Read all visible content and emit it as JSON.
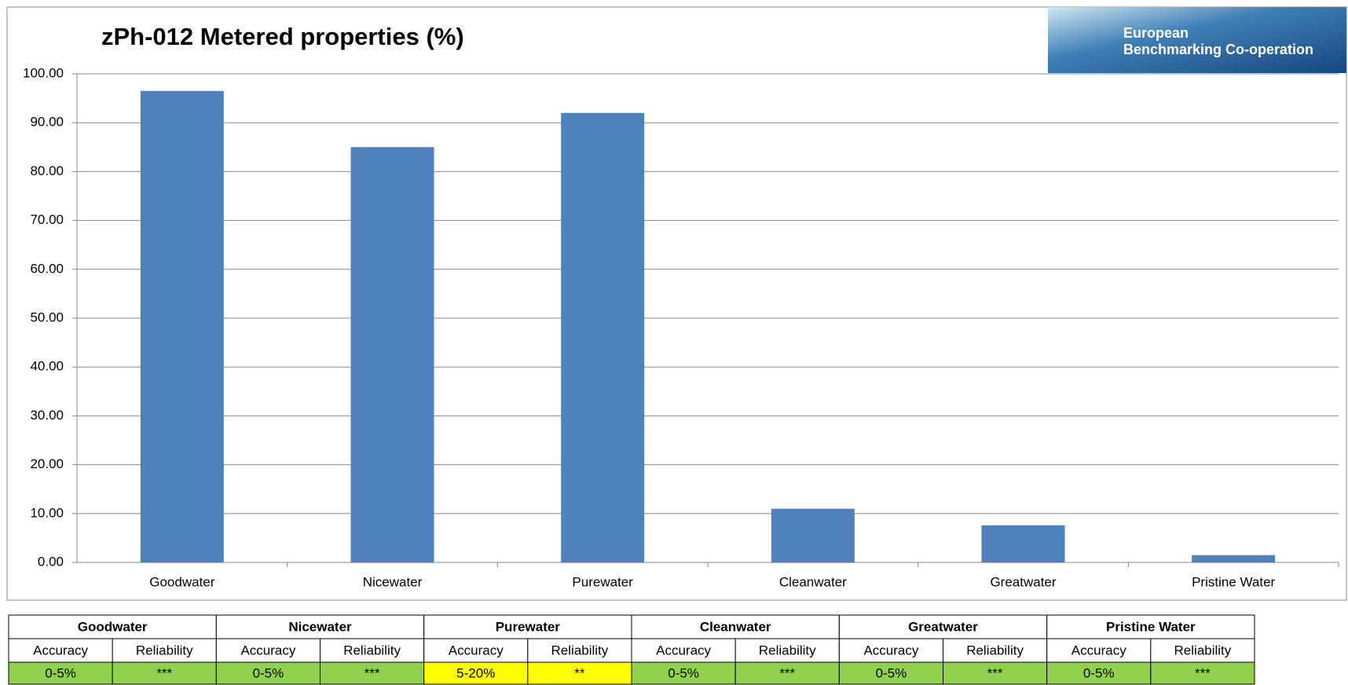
{
  "chart_data": {
    "type": "bar",
    "title": "zPh-012 Metered properties (%)",
    "categories": [
      "Goodwater",
      "Nicewater",
      "Purewater",
      "Cleanwater",
      "Greatwater",
      "Pristine Water"
    ],
    "values": [
      96.5,
      85,
      92,
      11,
      7.6,
      1.5
    ],
    "color": "#4f81bd",
    "ylim": [
      0,
      100
    ],
    "yticks": [
      {
        "value": 0,
        "label": "0.00"
      },
      {
        "value": 10,
        "label": "10.00"
      },
      {
        "value": 20,
        "label": "20.00"
      },
      {
        "value": 30,
        "label": "30.00"
      },
      {
        "value": 40,
        "label": "40.00"
      },
      {
        "value": 50,
        "label": "50.00"
      },
      {
        "value": 60,
        "label": "60.00"
      },
      {
        "value": 70,
        "label": "70.00"
      },
      {
        "value": 80,
        "label": "80.00"
      },
      {
        "value": 90,
        "label": "90.00"
      },
      {
        "value": 100,
        "label": "100.00"
      }
    ],
    "grid": true
  },
  "logo": {
    "line1": "European",
    "line2": "Benchmarking Co-operation"
  },
  "table": {
    "subheaders": [
      "Accuracy",
      "Reliability"
    ],
    "groups": [
      {
        "name": "Goodwater",
        "accuracy": "0-5%",
        "reliability": "***",
        "color": "#92d050"
      },
      {
        "name": "Nicewater",
        "accuracy": "0-5%",
        "reliability": "***",
        "color": "#92d050"
      },
      {
        "name": "Purewater",
        "accuracy": "5-20%",
        "reliability": "**",
        "color": "#ffff00"
      },
      {
        "name": "Cleanwater",
        "accuracy": "0-5%",
        "reliability": "***",
        "color": "#92d050"
      },
      {
        "name": "Greatwater",
        "accuracy": "0-5%",
        "reliability": "***",
        "color": "#92d050"
      },
      {
        "name": "Pristine Water",
        "accuracy": "0-5%",
        "reliability": "***",
        "color": "#92d050"
      }
    ]
  }
}
